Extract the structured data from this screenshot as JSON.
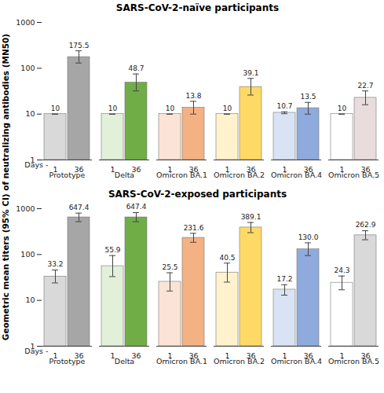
{
  "chart_data": [
    {
      "type": "bar",
      "title": "SARS-CoV-2-naïve participants",
      "ylabel": "Geometric mean titers (95% CI) of neutralizing antibodies (MN50)",
      "log": "y",
      "data_labels": true,
      "grid": false,
      "ylim": [
        1,
        1000
      ],
      "yticks": [
        1,
        10,
        100,
        1000
      ],
      "series_label": "Days -",
      "categories": [
        "Prototype",
        "Delta",
        "Omicron BA.1",
        "Omicron BA.2",
        "Omicron BA.4",
        "Omicron BA.5"
      ],
      "series": [
        {
          "name": "1",
          "values": [
            10,
            10,
            10,
            10,
            10.7,
            10
          ],
          "value_labels": [
            "10",
            "10",
            "10",
            "10",
            "10.7",
            "10"
          ],
          "error_low": [
            10,
            10,
            10,
            10,
            10.2,
            10
          ],
          "error_high": [
            10,
            10,
            10,
            10,
            11.2,
            10
          ],
          "colors": [
            "#d9d9d9",
            "#e2efd9",
            "#fbe4d5",
            "#fff2cc",
            "#dae3f3",
            "#ffffff"
          ]
        },
        {
          "name": "36",
          "values": [
            175.5,
            48.7,
            13.8,
            39.1,
            13.5,
            22.7
          ],
          "value_labels": [
            "175.5",
            "48.7",
            "13.8",
            "39.1",
            "13.5",
            "22.7"
          ],
          "error_low": [
            130,
            32,
            10,
            26,
            10,
            16
          ],
          "error_high": [
            240,
            75,
            19,
            60,
            18,
            32
          ],
          "colors": [
            "#a6a6a6",
            "#70ad47",
            "#f4b183",
            "#ffd966",
            "#8faadc",
            "#e8dcdc"
          ]
        }
      ]
    },
    {
      "type": "bar",
      "title": "SARS-CoV-2-exposed participants",
      "log": "y",
      "data_labels": true,
      "grid": false,
      "ylim": [
        1,
        1000
      ],
      "yticks": [
        1,
        10,
        100,
        1000
      ],
      "series_label": "Days -",
      "categories": [
        "Prototype",
        "Delta",
        "Omicron BA.1",
        "Omicron BA.2",
        "Omicron BA.4",
        "Omicron BA.5"
      ],
      "series": [
        {
          "name": "1",
          "values": [
            33.2,
            55.9,
            25.5,
            40.5,
            17.2,
            24.3
          ],
          "value_labels": [
            "33.2",
            "55.9",
            "25.5",
            "40.5",
            "17.2",
            "24.3"
          ],
          "error_low": [
            24,
            33,
            16,
            25,
            13,
            17
          ],
          "error_high": [
            46,
            95,
            40,
            65,
            22,
            34
          ],
          "colors": [
            "#d9d9d9",
            "#e2efd9",
            "#fbe4d5",
            "#fff2cc",
            "#dae3f3",
            "#ffffff"
          ]
        },
        {
          "name": "36",
          "values": [
            647.4,
            647.4,
            231.6,
            389.1,
            130.0,
            262.9
          ],
          "value_labels": [
            "647.4",
            "647.4",
            "231.6",
            "389.1",
            "130.0",
            "262.9"
          ],
          "error_low": [
            520,
            520,
            185,
            300,
            95,
            210
          ],
          "error_high": [
            800,
            820,
            290,
            500,
            180,
            330
          ],
          "colors": [
            "#a6a6a6",
            "#70ad47",
            "#f4b183",
            "#ffd966",
            "#8faadc",
            "#d9d9d9"
          ]
        }
      ]
    }
  ]
}
